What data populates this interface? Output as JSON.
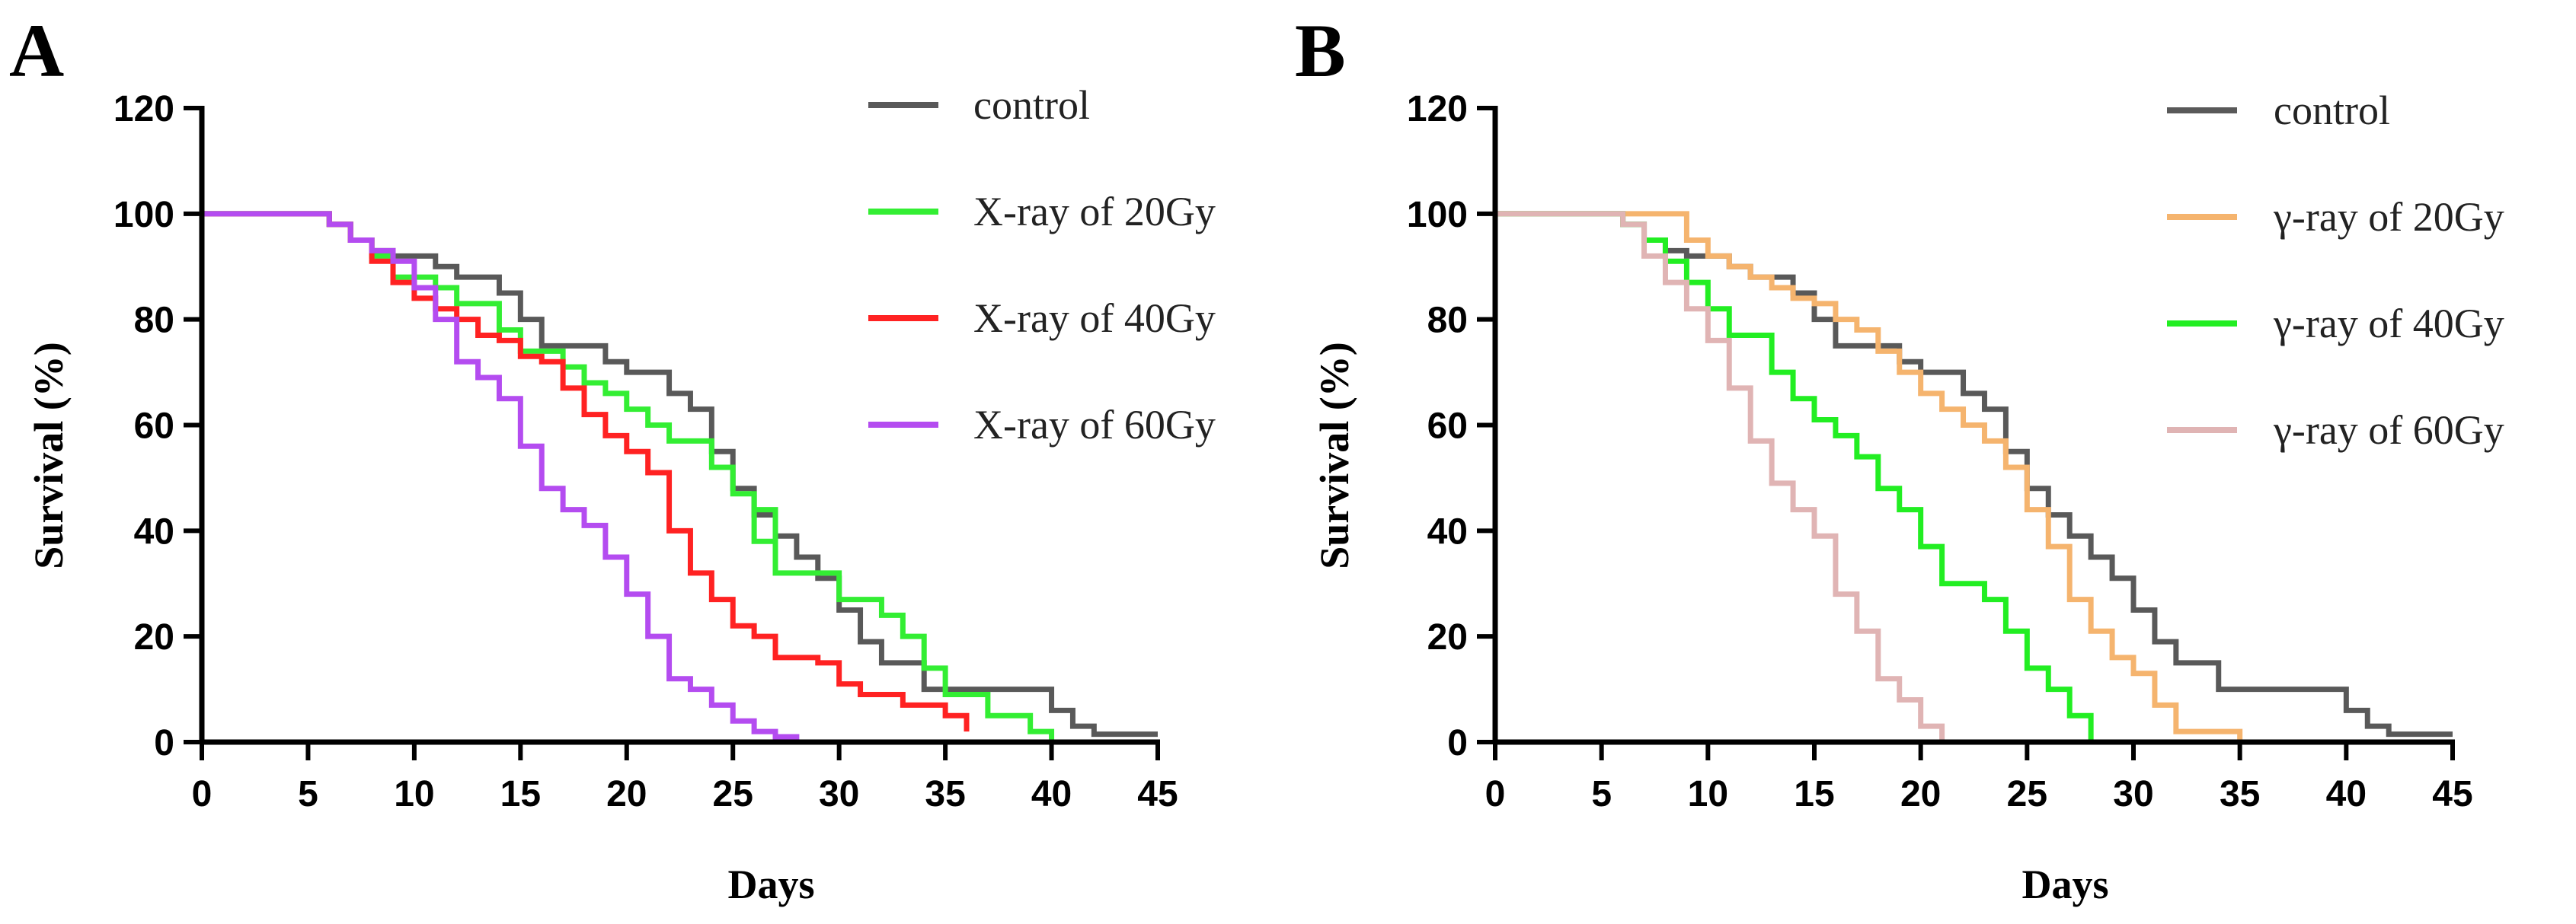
{
  "chart_data": [
    {
      "panel": "A",
      "type": "line",
      "step": true,
      "xlabel": "Days",
      "ylabel": "Survival (%)",
      "xlim": [
        0,
        45
      ],
      "ylim": [
        0,
        120
      ],
      "xticks": [
        0,
        5,
        10,
        15,
        20,
        25,
        30,
        35,
        40,
        45
      ],
      "yticks": [
        0,
        20,
        40,
        60,
        80,
        100,
        120
      ],
      "legend_position": "top-right",
      "series": [
        {
          "name": "control",
          "color": "#595959",
          "points": [
            [
              0,
              100
            ],
            [
              6,
              98
            ],
            [
              7,
              95
            ],
            [
              8,
              93
            ],
            [
              9,
              92
            ],
            [
              11,
              90
            ],
            [
              12,
              88
            ],
            [
              14,
              85
            ],
            [
              15,
              80
            ],
            [
              16,
              75
            ],
            [
              19,
              72
            ],
            [
              20,
              70
            ],
            [
              22,
              66
            ],
            [
              23,
              63
            ],
            [
              24,
              55
            ],
            [
              25,
              48
            ],
            [
              26,
              43
            ],
            [
              27,
              39
            ],
            [
              28,
              35
            ],
            [
              29,
              31
            ],
            [
              30,
              25
            ],
            [
              31,
              19
            ],
            [
              32,
              15
            ],
            [
              34,
              10
            ],
            [
              40,
              6
            ],
            [
              41,
              3
            ],
            [
              42,
              1.5
            ],
            [
              45,
              1.5
            ]
          ]
        },
        {
          "name": "X-ray of 20Gy",
          "color": "#33ee33",
          "points": [
            [
              0,
              100
            ],
            [
              6,
              98
            ],
            [
              7,
              95
            ],
            [
              8,
              92
            ],
            [
              9,
              88
            ],
            [
              11,
              86
            ],
            [
              12,
              83
            ],
            [
              14,
              78
            ],
            [
              15,
              74
            ],
            [
              17,
              71
            ],
            [
              18,
              68
            ],
            [
              19,
              66
            ],
            [
              20,
              63
            ],
            [
              21,
              60
            ],
            [
              22,
              57
            ],
            [
              24,
              52
            ],
            [
              25,
              47
            ],
            [
              26,
              44
            ],
            [
              27,
              38
            ],
            [
              26,
              44
            ],
            [
              26,
              44
            ],
            [
              27,
              38
            ],
            [
              26,
              44
            ],
            [
              27,
              38
            ],
            [
              27,
              32
            ],
            [
              30,
              27
            ],
            [
              32,
              24
            ],
            [
              33,
              20
            ],
            [
              34,
              14
            ],
            [
              35,
              9
            ],
            [
              37,
              5
            ],
            [
              39,
              2
            ],
            [
              40,
              0.5
            ]
          ]
        },
        {
          "name": "X-ray of 40Gy",
          "color": "#ff2222",
          "points": [
            [
              0,
              100
            ],
            [
              6,
              98
            ],
            [
              7,
              95
            ],
            [
              8,
              91
            ],
            [
              9,
              87
            ],
            [
              10,
              84
            ],
            [
              11,
              82
            ],
            [
              12,
              80
            ],
            [
              13,
              77
            ],
            [
              14,
              76
            ],
            [
              15,
              73
            ],
            [
              16,
              72
            ],
            [
              17,
              67
            ],
            [
              18,
              62
            ],
            [
              19,
              58
            ],
            [
              20,
              55
            ],
            [
              21,
              51
            ],
            [
              22,
              40
            ],
            [
              23,
              32
            ],
            [
              24,
              27
            ],
            [
              25,
              22
            ],
            [
              26,
              20
            ],
            [
              27,
              16
            ],
            [
              29,
              15
            ],
            [
              30,
              11
            ],
            [
              31,
              9
            ],
            [
              33,
              7
            ],
            [
              35,
              5
            ],
            [
              36,
              2
            ]
          ]
        },
        {
          "name": "X-ray of 60Gy",
          "color": "#b44cf0",
          "points": [
            [
              0,
              100
            ],
            [
              6,
              98
            ],
            [
              7,
              95
            ],
            [
              8,
              93
            ],
            [
              9,
              91
            ],
            [
              10,
              86
            ],
            [
              11,
              80
            ],
            [
              12,
              72
            ],
            [
              13,
              69
            ],
            [
              14,
              65
            ],
            [
              15,
              56
            ],
            [
              16,
              48
            ],
            [
              17,
              44
            ],
            [
              18,
              41
            ],
            [
              19,
              35
            ],
            [
              20,
              28
            ],
            [
              21,
              20
            ],
            [
              22,
              12
            ],
            [
              23,
              10
            ],
            [
              24,
              7
            ],
            [
              25,
              4
            ],
            [
              26,
              2
            ],
            [
              27,
              1
            ],
            [
              28,
              0.5
            ]
          ]
        }
      ]
    },
    {
      "panel": "B",
      "type": "line",
      "step": true,
      "xlabel": "Days",
      "ylabel": "Survival (%)",
      "xlim": [
        0,
        45
      ],
      "ylim": [
        0,
        120
      ],
      "xticks": [
        0,
        5,
        10,
        15,
        20,
        25,
        30,
        35,
        40,
        45
      ],
      "yticks": [
        0,
        20,
        40,
        60,
        80,
        100,
        120
      ],
      "legend_position": "top-right",
      "series": [
        {
          "name": "control",
          "color": "#595959",
          "points": [
            [
              0,
              100
            ],
            [
              6,
              98
            ],
            [
              7,
              95
            ],
            [
              8,
              93
            ],
            [
              9,
              92
            ],
            [
              11,
              90
            ],
            [
              12,
              88
            ],
            [
              14,
              85
            ],
            [
              15,
              80
            ],
            [
              16,
              75
            ],
            [
              19,
              72
            ],
            [
              20,
              70
            ],
            [
              22,
              66
            ],
            [
              23,
              63
            ],
            [
              24,
              55
            ],
            [
              25,
              48
            ],
            [
              26,
              43
            ],
            [
              27,
              39
            ],
            [
              28,
              35
            ],
            [
              29,
              31
            ],
            [
              30,
              25
            ],
            [
              31,
              19
            ],
            [
              32,
              15
            ],
            [
              34,
              10
            ],
            [
              40,
              6
            ],
            [
              41,
              3
            ],
            [
              42,
              1.5
            ],
            [
              45,
              1.5
            ]
          ]
        },
        {
          "name": "γ-ray of 20Gy",
          "color": "#f5b46e",
          "points": [
            [
              0,
              100
            ],
            [
              6,
              100
            ],
            [
              9,
              95
            ],
            [
              10,
              92
            ],
            [
              11,
              90
            ],
            [
              12,
              88
            ],
            [
              13,
              86
            ],
            [
              14,
              84
            ],
            [
              15,
              83
            ],
            [
              16,
              80
            ],
            [
              17,
              78
            ],
            [
              18,
              74
            ],
            [
              19,
              70
            ],
            [
              20,
              66
            ],
            [
              21,
              63
            ],
            [
              22,
              60
            ],
            [
              23,
              57
            ],
            [
              24,
              52
            ],
            [
              25,
              44
            ],
            [
              26,
              37
            ],
            [
              27,
              27
            ],
            [
              28,
              21
            ],
            [
              29,
              16
            ],
            [
              30,
              13
            ],
            [
              31,
              7
            ],
            [
              32,
              2
            ],
            [
              35,
              0.5
            ]
          ]
        },
        {
          "name": "γ-ray of 40Gy",
          "color": "#22ee22",
          "points": [
            [
              0,
              100
            ],
            [
              6,
              98
            ],
            [
              7,
              95
            ],
            [
              8,
              91
            ],
            [
              9,
              87
            ],
            [
              10,
              82
            ],
            [
              11,
              77
            ],
            [
              13,
              70
            ],
            [
              14,
              65
            ],
            [
              15,
              61
            ],
            [
              16,
              58
            ],
            [
              17,
              54
            ],
            [
              18,
              48
            ],
            [
              19,
              44
            ],
            [
              20,
              37
            ],
            [
              21,
              30
            ],
            [
              23,
              27
            ],
            [
              24,
              21
            ],
            [
              25,
              14
            ],
            [
              26,
              10
            ],
            [
              27,
              5
            ],
            [
              28,
              0.5
            ]
          ]
        },
        {
          "name": "γ-ray of 60Gy",
          "color": "#e0b4b4",
          "points": [
            [
              0,
              100
            ],
            [
              6,
              98
            ],
            [
              7,
              92
            ],
            [
              8,
              87
            ],
            [
              9,
              82
            ],
            [
              10,
              76
            ],
            [
              11,
              67
            ],
            [
              12,
              57
            ],
            [
              13,
              49
            ],
            [
              14,
              44
            ],
            [
              15,
              39
            ],
            [
              16,
              28
            ],
            [
              17,
              21
            ],
            [
              18,
              12
            ],
            [
              19,
              8
            ],
            [
              20,
              3
            ],
            [
              21,
              0.5
            ]
          ]
        }
      ]
    }
  ]
}
